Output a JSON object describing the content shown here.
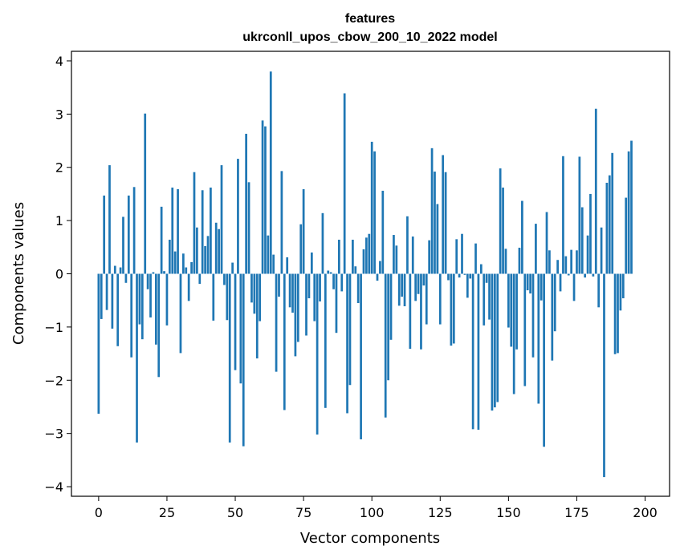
{
  "chart_data": {
    "type": "bar",
    "title": [
      "features",
      "ukrconll_upos_cbow_200_10_2022 model"
    ],
    "xlabel": "Vector components",
    "ylabel": "Components values",
    "xlim": [
      -9.95,
      208.95
    ],
    "ylim": [
      -4.18,
      4.18
    ],
    "xticks": [
      0,
      25,
      50,
      75,
      100,
      125,
      150,
      175,
      200
    ],
    "yticks": [
      -4,
      -3,
      -2,
      -1,
      0,
      1,
      2,
      3,
      4
    ],
    "grid": false,
    "bar_color": "#1f77b4",
    "values": [
      -2.63,
      -0.85,
      1.47,
      -0.68,
      2.04,
      -1.03,
      0.15,
      -1.36,
      0.12,
      1.07,
      -0.17,
      1.47,
      -1.57,
      1.63,
      -3.17,
      -0.95,
      -1.23,
      3.01,
      -0.29,
      -0.82,
      0.03,
      -1.33,
      -1.94,
      1.26,
      0.05,
      -0.97,
      0.64,
      1.62,
      0.42,
      1.59,
      -1.49,
      0.38,
      0.12,
      -0.51,
      0.22,
      1.91,
      0.87,
      -0.19,
      1.57,
      0.52,
      0.71,
      1.62,
      -0.88,
      0.96,
      0.84,
      2.04,
      -0.21,
      -0.87,
      -3.17,
      0.21,
      -1.81,
      2.16,
      -2.06,
      -3.24,
      2.63,
      1.72,
      -0.54,
      -0.75,
      -1.59,
      -0.89,
      2.88,
      2.77,
      0.72,
      3.8,
      0.36,
      -1.84,
      -0.43,
      1.93,
      -2.56,
      0.31,
      -0.63,
      -0.73,
      -1.55,
      -1.28,
      0.93,
      1.59,
      -1.16,
      -0.46,
      0.4,
      -0.89,
      -3.02,
      -0.52,
      1.14,
      -2.52,
      0.06,
      0.03,
      -0.29,
      -1.11,
      0.64,
      -0.33,
      3.39,
      -2.62,
      -2.09,
      0.64,
      0.14,
      -0.55,
      -3.11,
      0.46,
      0.68,
      0.75,
      2.48,
      2.3,
      -0.13,
      0.24,
      1.56,
      -2.7,
      -2.0,
      -1.24,
      0.73,
      0.53,
      -0.6,
      -0.43,
      -0.61,
      1.08,
      -1.41,
      0.7,
      -0.51,
      -0.38,
      -1.42,
      -0.22,
      -0.95,
      0.63,
      2.36,
      1.92,
      1.31,
      -0.95,
      2.23,
      1.91,
      -0.12,
      -1.35,
      -1.31,
      0.65,
      -0.07,
      0.75,
      -0.02,
      -0.45,
      -0.09,
      -2.92,
      0.57,
      -2.93,
      0.18,
      -0.97,
      -0.17,
      -0.86,
      -2.57,
      -2.51,
      -2.41,
      1.98,
      1.62,
      0.47,
      -1.01,
      -1.37,
      -2.26,
      -1.42,
      0.49,
      1.37,
      -2.11,
      -0.31,
      -0.37,
      -1.57,
      0.94,
      -2.44,
      -0.5,
      -3.25,
      1.16,
      0.44,
      -1.63,
      -1.08,
      0.26,
      -0.33,
      2.21,
      0.33,
      -0.03,
      0.45,
      -0.51,
      0.44,
      2.2,
      1.25,
      -0.07,
      0.72,
      1.5,
      -0.05,
      3.1,
      -0.63,
      0.87,
      -3.82,
      1.71,
      1.85,
      2.27,
      -1.51,
      -1.49,
      -0.69,
      -0.46,
      1.43,
      2.3,
      2.5
    ]
  }
}
